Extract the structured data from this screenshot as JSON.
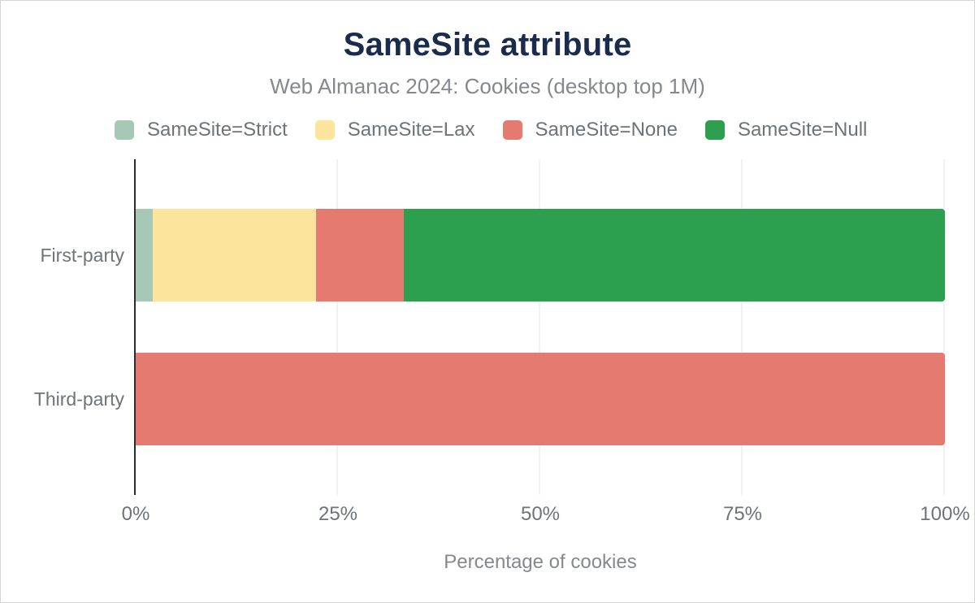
{
  "colors": {
    "title_text": "#1a2b4c",
    "subtitle_text": "#85888e",
    "label_text": "#6e737a",
    "axis_line": "#2b2b2b",
    "gridline": "#f2f2f4"
  },
  "chart_data": {
    "type": "bar",
    "orientation": "horizontal",
    "stacked": true,
    "title": "SameSite attribute",
    "subtitle": "Web Almanac 2024: Cookies (desktop top 1M)",
    "xlabel": "Percentage of cookies",
    "xlim": [
      0,
      100
    ],
    "xtick_values": [
      0,
      25,
      50,
      75,
      100
    ],
    "xtick_labels": [
      "0%",
      "25%",
      "50%",
      "75%",
      "100%"
    ],
    "grid": true,
    "legend_position": "top",
    "categories": [
      "First-party",
      "Third-party"
    ],
    "series": [
      {
        "name": "SameSite=Strict",
        "color": "#a7c8b6",
        "values": [
          2.1,
          0
        ]
      },
      {
        "name": "SameSite=Lax",
        "color": "#fde49c",
        "values": [
          20.2,
          0
        ]
      },
      {
        "name": "SameSite=None",
        "color": "#e57b70",
        "values": [
          10.8,
          100
        ]
      },
      {
        "name": "SameSite=Null",
        "color": "#2da050",
        "values": [
          66.9,
          0
        ]
      }
    ]
  }
}
